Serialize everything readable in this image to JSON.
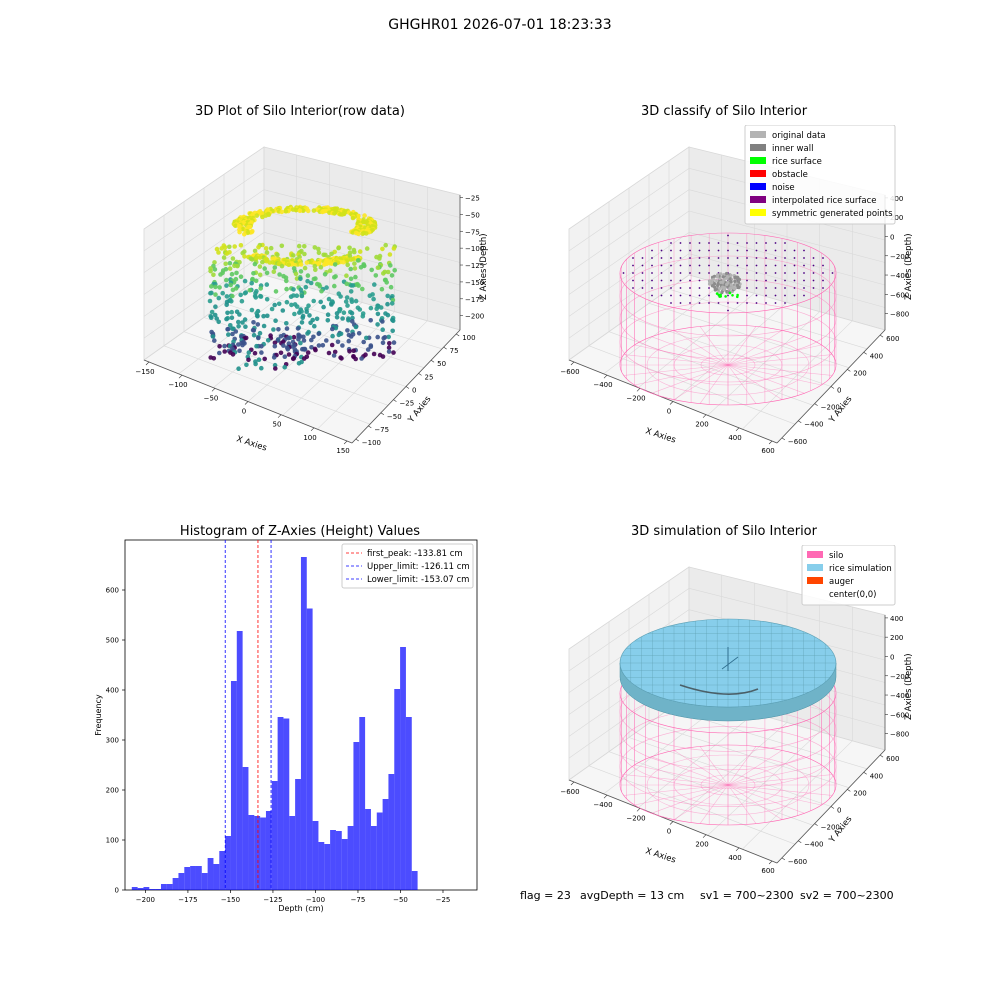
{
  "figure": {
    "suptitle": "GHGHR01 2026-07-01 18:23:33",
    "footer": {
      "flag": "flag = 23",
      "avg_depth": "avgDepth = 13 cm",
      "sv1": "sv1 = 700~2300",
      "sv2": "sv2 = 700~2300"
    }
  },
  "chart_data": [
    {
      "type": "scatter",
      "projection": "3d",
      "title": "3D Plot of Silo Interior(row data)",
      "xlabel": "X Axies",
      "ylabel": "Y Axies",
      "zlabel": "Z Axies (Depth)",
      "xlim": [
        -150,
        150
      ],
      "ylim": [
        -100,
        100
      ],
      "zlim": [
        -225,
        -25
      ],
      "xticks": [
        "−150",
        "−100",
        "−50",
        "0",
        "50",
        "100",
        "150"
      ],
      "yticks": [
        "100",
        "75",
        "50",
        "25",
        "0",
        "−25",
        "−50",
        "−75",
        "−100"
      ],
      "zticks": [
        "−25",
        "−50",
        "−75",
        "−100",
        "−125",
        "−150",
        "−175",
        "−200"
      ],
      "colormap": "viridis"
    },
    {
      "type": "scatter",
      "projection": "3d",
      "title": "3D classify of Silo Interior",
      "xlabel": "X Axies",
      "ylabel": "Y Axies",
      "zlabel": "Z Axies (Depth)",
      "xticks": [
        "−600",
        "−400",
        "−200",
        "0",
        "200",
        "400",
        "600"
      ],
      "yticks": [
        "600",
        "400",
        "200",
        "0",
        "−200",
        "−400",
        "−600"
      ],
      "zticks": [
        "400",
        "200",
        "0",
        "−200",
        "−400",
        "−600",
        "−800"
      ],
      "legend_position": "top-right",
      "legend": [
        {
          "label": "original data",
          "color": "#b3b3b3"
        },
        {
          "label": "inner wall",
          "color": "#808080"
        },
        {
          "label": "rice surface",
          "color": "#00ff00"
        },
        {
          "label": "obstacle",
          "color": "#ff0000"
        },
        {
          "label": "noise",
          "color": "#0000ff"
        },
        {
          "label": "interpolated rice surface",
          "color": "#800080"
        },
        {
          "label": "symmetric generated points",
          "color": "#ffff00"
        }
      ]
    },
    {
      "type": "bar",
      "title": "Histogram of Z-Axies (Height) Values",
      "xlabel": "Depth (cm)",
      "ylabel": "Frequency",
      "xlim": [
        -212,
        -5
      ],
      "ylim": [
        0,
        700
      ],
      "xticks": [
        -200,
        -175,
        -150,
        -125,
        -100,
        -75,
        -50,
        -25
      ],
      "yticks": [
        0,
        100,
        200,
        300,
        400,
        500,
        600
      ],
      "bin_width": 3.43,
      "bin_start": -208.0,
      "bar_color": "#0000ff",
      "values": [
        6,
        4,
        6,
        2,
        2,
        12,
        12,
        24,
        34,
        46,
        48,
        48,
        34,
        64,
        52,
        78,
        108,
        418,
        518,
        246,
        150,
        148,
        145,
        158,
        218,
        346,
        343,
        148,
        222,
        666,
        563,
        138,
        96,
        92,
        120,
        118,
        102,
        128,
        296,
        346,
        162,
        128,
        155,
        182,
        232,
        402,
        486,
        346,
        38
      ],
      "lines": [
        {
          "label": "first_peak: -133.81 cm",
          "x": -133.81,
          "color": "#ff0000"
        },
        {
          "label": "Upper_limit: -126.11 cm",
          "x": -126.11,
          "color": "#0000ff"
        },
        {
          "label": "Lower_limit: -153.07 cm",
          "x": -153.07,
          "color": "#0000ff"
        }
      ],
      "legend_position": "top-right"
    },
    {
      "type": "surface",
      "projection": "3d",
      "title": "3D simulation of Silo Interior",
      "xlabel": "X Axies",
      "ylabel": "Y Axies",
      "zlabel": "Z Axies (Depth)",
      "xticks": [
        "−600",
        "−400",
        "−200",
        "0",
        "200",
        "400",
        "600"
      ],
      "yticks": [
        "600",
        "400",
        "200",
        "0",
        "−200",
        "−400",
        "−600"
      ],
      "zticks": [
        "400",
        "200",
        "0",
        "−200",
        "−400",
        "−600",
        "−800"
      ],
      "legend_position": "top-right",
      "legend": [
        {
          "label": "silo",
          "color": "#ff69b4"
        },
        {
          "label": "rice simulation",
          "color": "#87ceeb"
        },
        {
          "label": "auger",
          "color": "#ff4500"
        },
        {
          "label": "center(0,0)",
          "color": ""
        }
      ]
    }
  ]
}
